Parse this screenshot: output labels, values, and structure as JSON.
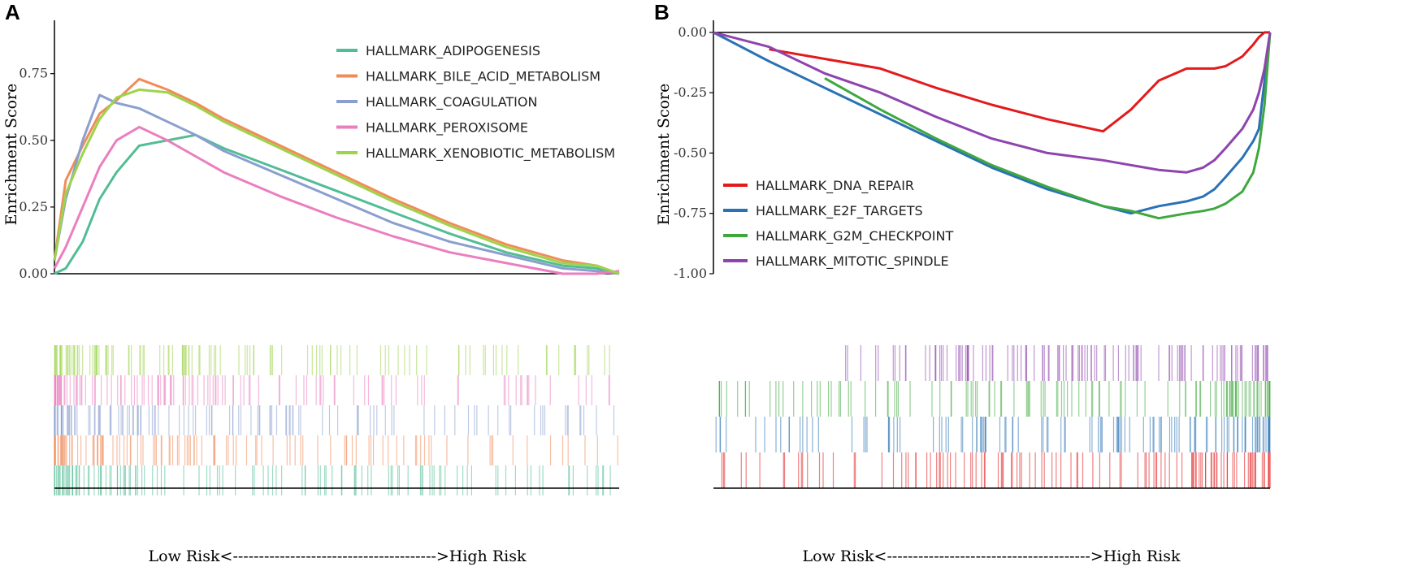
{
  "chart_data": [
    {
      "panel_label": "A",
      "type": "line",
      "title": "",
      "xlabel": "Low Risk<--------------------------------------->High Risk",
      "ylabel": "Enrichment Score",
      "ylim": [
        0,
        0.95
      ],
      "yticks": [
        "0.00",
        "0.25",
        "0.50",
        "0.75"
      ],
      "ytick_values": [
        0,
        0.25,
        0.5,
        0.75
      ],
      "legend_position": "top-right",
      "x": [
        0,
        0.02,
        0.05,
        0.08,
        0.11,
        0.15,
        0.2,
        0.25,
        0.3,
        0.4,
        0.5,
        0.6,
        0.7,
        0.8,
        0.9,
        0.96,
        1.0
      ],
      "series": [
        {
          "name": "HALLMARK_ADIPOGENESIS",
          "color": "#52bd95",
          "values": [
            0.0,
            0.02,
            0.12,
            0.28,
            0.38,
            0.48,
            0.5,
            0.52,
            0.47,
            0.39,
            0.31,
            0.23,
            0.15,
            0.08,
            0.03,
            0.02,
            0.0
          ]
        },
        {
          "name": "HALLMARK_BILE_ACID_METABOLISM",
          "color": "#f08c5a",
          "values": [
            0.05,
            0.35,
            0.48,
            0.6,
            0.65,
            0.73,
            0.69,
            0.64,
            0.58,
            0.48,
            0.38,
            0.28,
            0.19,
            0.11,
            0.05,
            0.03,
            0.0
          ]
        },
        {
          "name": "HALLMARK_COAGULATION",
          "color": "#8a9fcf",
          "values": [
            0.05,
            0.28,
            0.5,
            0.67,
            0.64,
            0.62,
            0.57,
            0.52,
            0.46,
            0.37,
            0.28,
            0.19,
            0.12,
            0.07,
            0.02,
            0.01,
            0.0
          ]
        },
        {
          "name": "HALLMARK_PEROXISOME",
          "color": "#ea7fbf",
          "values": [
            0.02,
            0.1,
            0.25,
            0.4,
            0.5,
            0.55,
            0.5,
            0.44,
            0.38,
            0.29,
            0.21,
            0.14,
            0.08,
            0.04,
            0.0,
            0.0,
            0.01
          ]
        },
        {
          "name": "HALLMARK_XENOBIOTIC_METABOLISM",
          "color": "#9ed34c",
          "values": [
            0.05,
            0.3,
            0.45,
            0.58,
            0.66,
            0.69,
            0.68,
            0.63,
            0.57,
            0.47,
            0.37,
            0.27,
            0.18,
            0.1,
            0.04,
            0.03,
            0.0
          ]
        }
      ],
      "rug_order": [
        "HALLMARK_XENOBIOTIC_METABOLISM",
        "HALLMARK_PEROXISOME",
        "HALLMARK_COAGULATION",
        "HALLMARK_BILE_ACID_METABOLISM",
        "HALLMARK_ADIPOGENESIS"
      ]
    },
    {
      "panel_label": "B",
      "type": "line",
      "title": "",
      "xlabel": "Low Risk<--------------------------------------->High Risk",
      "ylabel": "Enrichment Score",
      "ylim": [
        -1.0,
        0.05
      ],
      "yticks": [
        "0.00",
        "-0.25",
        "-0.50",
        "-0.75",
        "-1.00"
      ],
      "ytick_values": [
        0,
        -0.25,
        -0.5,
        -0.75,
        -1.0
      ],
      "legend_position": "bottom-left",
      "x": [
        0,
        0.1,
        0.2,
        0.3,
        0.4,
        0.5,
        0.6,
        0.7,
        0.75,
        0.8,
        0.85,
        0.88,
        0.9,
        0.92,
        0.95,
        0.97,
        0.98,
        0.99,
        1.0
      ],
      "series": [
        {
          "name": "HALLMARK_DNA_REPAIR",
          "color": "#e31a1c",
          "values": [
            null,
            -0.07,
            -0.11,
            -0.15,
            -0.23,
            -0.3,
            -0.36,
            -0.41,
            -0.32,
            -0.2,
            -0.15,
            -0.15,
            -0.15,
            -0.14,
            -0.1,
            -0.05,
            -0.02,
            0.0,
            0.0
          ]
        },
        {
          "name": "HALLMARK_E2F_TARGETS",
          "color": "#2a72b5",
          "values": [
            0.0,
            -0.12,
            -0.23,
            -0.34,
            -0.45,
            -0.56,
            -0.65,
            -0.72,
            -0.75,
            -0.72,
            -0.7,
            -0.68,
            -0.65,
            -0.6,
            -0.52,
            -0.45,
            -0.4,
            -0.2,
            0.0
          ]
        },
        {
          "name": "HALLMARK_G2M_CHECKPOINT",
          "color": "#3ea83e",
          "values": [
            null,
            null,
            -0.19,
            -0.32,
            -0.44,
            -0.55,
            -0.64,
            -0.72,
            -0.74,
            -0.77,
            -0.75,
            -0.74,
            -0.73,
            -0.71,
            -0.66,
            -0.58,
            -0.48,
            -0.3,
            0.0
          ]
        },
        {
          "name": "HALLMARK_MITOTIC_SPINDLE",
          "color": "#8e44ad",
          "values": [
            0.0,
            -0.06,
            -0.17,
            -0.25,
            -0.35,
            -0.44,
            -0.5,
            -0.53,
            -0.55,
            -0.57,
            -0.58,
            -0.56,
            -0.53,
            -0.48,
            -0.4,
            -0.32,
            -0.25,
            -0.15,
            0.0
          ]
        }
      ],
      "rug_order": [
        "HALLMARK_MITOTIC_SPINDLE",
        "HALLMARK_G2M_CHECKPOINT",
        "HALLMARK_E2F_TARGETS",
        "HALLMARK_DNA_REPAIR"
      ]
    }
  ]
}
